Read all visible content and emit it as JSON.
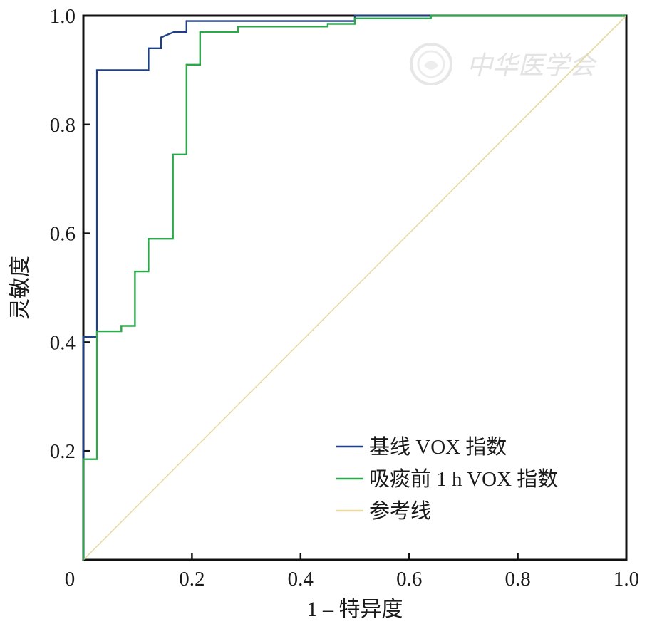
{
  "chart_data": {
    "type": "line",
    "title": "",
    "xlabel": "1 – 特异度",
    "ylabel": "灵敏度",
    "xlim": [
      0,
      1
    ],
    "ylim": [
      0,
      1
    ],
    "x_ticks": [
      "0",
      "0.2",
      "0.4",
      "0.6",
      "0.8",
      "1.0"
    ],
    "y_ticks": [
      "0.2",
      "0.4",
      "0.6",
      "0.8",
      "1.0"
    ],
    "legend_position": "bottom-right",
    "grid": false,
    "series": [
      {
        "name": "基线 VOX 指数",
        "color": "#1f3f86",
        "x": [
          0,
          0,
          0.025,
          0.025,
          0.12,
          0.12,
          0.143,
          0.143,
          0.155,
          0.167,
          0.167,
          0.19,
          0.19,
          0.5,
          0.5,
          0.64
        ],
        "y": [
          0,
          0.41,
          0.41,
          0.9,
          0.9,
          0.94,
          0.94,
          0.96,
          0.965,
          0.97,
          0.97,
          0.97,
          0.99,
          0.99,
          1.0,
          1.0
        ]
      },
      {
        "name": "吸痰前 1 h VOX 指数",
        "color": "#2ba84a",
        "x": [
          0,
          0,
          0.025,
          0.025,
          0.07,
          0.07,
          0.095,
          0.095,
          0.12,
          0.12,
          0.165,
          0.165,
          0.19,
          0.19,
          0.215,
          0.215,
          0.285,
          0.285,
          0.45,
          0.45,
          0.5,
          0.5,
          0.64,
          0.64,
          1.0
        ],
        "y": [
          0,
          0.185,
          0.185,
          0.42,
          0.42,
          0.43,
          0.43,
          0.53,
          0.53,
          0.59,
          0.59,
          0.745,
          0.745,
          0.91,
          0.91,
          0.97,
          0.97,
          0.98,
          0.98,
          0.985,
          0.985,
          0.995,
          0.995,
          1.0,
          1.0
        ]
      },
      {
        "name": "参考线",
        "color": "#e9d9a0",
        "x": [
          0,
          1
        ],
        "y": [
          0,
          1
        ]
      }
    ]
  },
  "watermark": {
    "text": "中华医学会",
    "emblem_icon": "society-seal-icon"
  }
}
